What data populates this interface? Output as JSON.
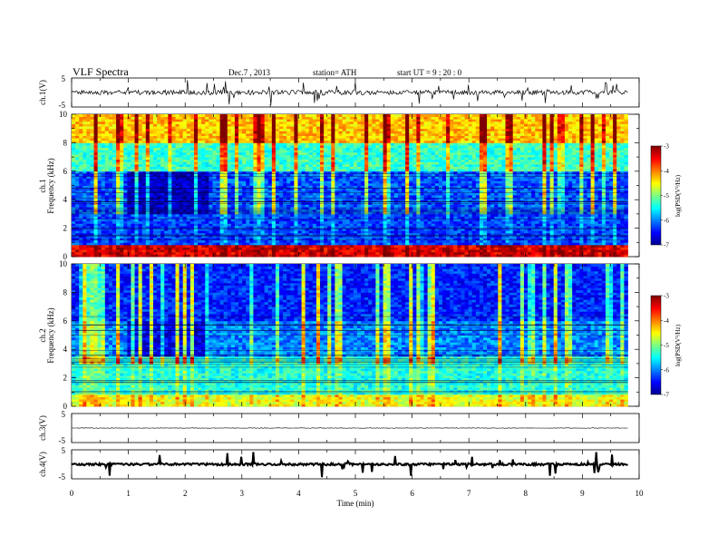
{
  "header": {
    "title": "VLF  Spectra",
    "date": "Dec.7  , 2013",
    "station": "station= ATH",
    "start_time": "start  UT  =   9  : 20 : 0"
  },
  "chart_data": [
    {
      "id": "ch1-waveform",
      "type": "line",
      "ylabel": "ch.1(V)",
      "ylim": [
        -5,
        5
      ],
      "yticks": [
        "5",
        "-5"
      ],
      "xlim": [
        0,
        10
      ],
      "data_extent_min": 9.8,
      "baseline": 0,
      "series": [
        {
          "x_range": [
            0,
            9.8
          ],
          "y_approx": 0.0,
          "noise_amplitude": 1.0,
          "color": "#000000"
        }
      ]
    },
    {
      "id": "ch1-spectrogram",
      "type": "heatmap",
      "ylabel": "ch.1\nFrequency  (kHz)",
      "ylim": [
        0,
        10
      ],
      "yticks": [
        "0",
        "2",
        "4",
        "6",
        "8",
        "10"
      ],
      "xlim": [
        0,
        10
      ],
      "colorbar": {
        "label": "log(PSD(V²/Hz)",
        "range": [
          -7,
          -3
        ],
        "ticks": [
          "-3",
          "-4",
          "-5",
          "-6",
          "-7"
        ]
      },
      "description_points": [
        {
          "freq_khz": 0.5,
          "logpsd": -3.2
        },
        {
          "freq_khz": 2.5,
          "logpsd": -6.4
        },
        {
          "freq_khz": 4.5,
          "logpsd": -6.2
        },
        {
          "freq_khz": 7.0,
          "logpsd": -5.2
        },
        {
          "freq_khz": 9.0,
          "logpsd": -4.2
        }
      ]
    },
    {
      "id": "ch2-spectrogram",
      "type": "heatmap",
      "ylabel": "ch.2\nFrequency  (kHz)",
      "ylim": [
        0,
        10
      ],
      "yticks": [
        "0",
        "2",
        "4",
        "6",
        "8",
        "10"
      ],
      "xlim": [
        0,
        10
      ],
      "colorbar": {
        "label": "log(PSD(V²/Hz)",
        "range": [
          -7,
          -3
        ],
        "ticks": [
          "-3",
          "-4",
          "-5",
          "-6",
          "-7"
        ]
      },
      "description_points": [
        {
          "freq_khz": 0.5,
          "logpsd": -4.6
        },
        {
          "freq_khz": 2.5,
          "logpsd": -5.6
        },
        {
          "freq_khz": 4.5,
          "logpsd": -5.9
        },
        {
          "freq_khz": 7.0,
          "logpsd": -6.4
        },
        {
          "freq_khz": 9.0,
          "logpsd": -6.3
        }
      ]
    },
    {
      "id": "ch3-waveform",
      "type": "line",
      "ylabel": "ch.3(V)",
      "ylim": [
        -5,
        5
      ],
      "yticks": [
        "5",
        "-5"
      ],
      "xlim": [
        0,
        10
      ],
      "series": [
        {
          "x_range": [
            0,
            9.8
          ],
          "y_approx": 0.0,
          "color": "#000000"
        }
      ]
    },
    {
      "id": "ch4-waveform",
      "type": "line",
      "ylabel": "ch.4(V)",
      "ylim": [
        -5,
        5
      ],
      "yticks": [
        "5",
        "-5"
      ],
      "xlim": [
        0,
        10
      ],
      "series": [
        {
          "x_range": [
            0,
            9.8
          ],
          "y_approx": 0.0,
          "color": "#000000"
        }
      ]
    }
  ],
  "x_axis": {
    "label": "Time  (min)",
    "ticks": [
      "0",
      "1",
      "2",
      "3",
      "4",
      "5",
      "6",
      "7",
      "8",
      "9",
      "10"
    ]
  },
  "colors": {
    "jet": [
      "#00008f",
      "#0000ff",
      "#00ffff",
      "#7fff7f",
      "#ffff00",
      "#ff7f00",
      "#ff0000",
      "#7f0000"
    ]
  }
}
